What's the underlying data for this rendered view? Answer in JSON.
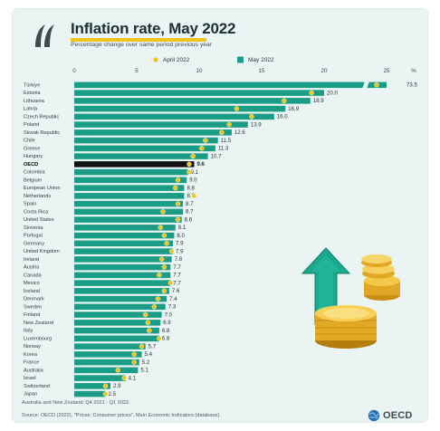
{
  "header": {
    "title": "Inflation rate, May 2022",
    "subtitle": "Percentage change over same period previous year"
  },
  "legend": {
    "april_label": "April 2022",
    "may_label": "May 2022"
  },
  "colors": {
    "may_bar": "#1a9c86",
    "oecd_bar": "#111111",
    "april_dot": "#f0c419",
    "background": "#eaf4f2"
  },
  "footnote": "Australia and New Zealand: Q4 2021 - Q1 2022.",
  "source": "Source: OECD (2022), \"Prices: Consumer prices\", Main Economic Indicators (database).",
  "logo_text": "OECD",
  "chart_data": {
    "type": "bar",
    "orientation": "horizontal",
    "x_ticks": [
      "0",
      "5",
      "10",
      "15",
      "20",
      "25"
    ],
    "x_unit": "%",
    "xlim": [
      0,
      25
    ],
    "grid": false,
    "legend_position": "top",
    "series": [
      {
        "name": "May 2022",
        "kind": "bar"
      },
      {
        "name": "April 2022",
        "kind": "dot"
      }
    ],
    "rows": [
      {
        "label": "Türkiye",
        "may": 73.5,
        "may_label": "73.5",
        "april": 70.0,
        "broken": true
      },
      {
        "label": "Estonia",
        "may": 20.0,
        "may_label": "20.0",
        "april": 19.0
      },
      {
        "label": "Lithuania",
        "may": 18.9,
        "may_label": "18.9",
        "april": 16.8
      },
      {
        "label": "Latvia",
        "may": 16.9,
        "may_label": "16.9",
        "april": 13.0
      },
      {
        "label": "Czech Republic",
        "may": 16.0,
        "may_label": "16.0",
        "april": 14.2
      },
      {
        "label": "Poland",
        "may": 13.9,
        "may_label": "13.9",
        "april": 12.4
      },
      {
        "label": "Slovak Republic",
        "may": 12.6,
        "may_label": "12.6",
        "april": 11.8
      },
      {
        "label": "Chile",
        "may": 11.5,
        "may_label": "11.5",
        "april": 10.5
      },
      {
        "label": "Greece",
        "may": 11.3,
        "may_label": "11.3",
        "april": 10.2
      },
      {
        "label": "Hungary",
        "may": 10.7,
        "may_label": "10.7",
        "april": 9.5
      },
      {
        "label": "OECD",
        "may": 9.6,
        "may_label": "9.6",
        "april": 9.2,
        "highlight": true
      },
      {
        "label": "Colombia",
        "may": 9.1,
        "may_label": "9.1",
        "april": 9.2
      },
      {
        "label": "Belgium",
        "may": 9.0,
        "may_label": "9.0",
        "april": 8.3
      },
      {
        "label": "European Union",
        "may": 8.8,
        "may_label": "8.8",
        "april": 8.1
      },
      {
        "label": "Netherlands",
        "may": 8.8,
        "may_label": "8.8",
        "april": 9.6
      },
      {
        "label": "Spain",
        "may": 8.7,
        "may_label": "8.7",
        "april": 8.3
      },
      {
        "label": "Costa Rica",
        "may": 8.7,
        "may_label": "8.7",
        "april": 7.1
      },
      {
        "label": "United States",
        "may": 8.6,
        "may_label": "8.6",
        "april": 8.3
      },
      {
        "label": "Slovenia",
        "may": 8.1,
        "may_label": "8.1",
        "april": 6.9
      },
      {
        "label": "Portugal",
        "may": 8.0,
        "may_label": "8.0",
        "april": 7.2
      },
      {
        "label": "Germany",
        "may": 7.9,
        "may_label": "7.9",
        "april": 7.4
      },
      {
        "label": "United Kingdom",
        "may": 7.9,
        "may_label": "7.9",
        "april": 7.8
      },
      {
        "label": "Ireland",
        "may": 7.8,
        "may_label": "7.8",
        "april": 7.0
      },
      {
        "label": "Austria",
        "may": 7.7,
        "may_label": "7.7",
        "april": 7.2
      },
      {
        "label": "Canada",
        "may": 7.7,
        "may_label": "7.7",
        "april": 6.8
      },
      {
        "label": "Mexico",
        "may": 7.7,
        "may_label": "7.7",
        "april": 7.7
      },
      {
        "label": "Iceland",
        "may": 7.6,
        "may_label": "7.6",
        "april": 7.2
      },
      {
        "label": "Denmark",
        "may": 7.4,
        "may_label": "7.4",
        "april": 6.7
      },
      {
        "label": "Sweden",
        "may": 7.3,
        "may_label": "7.3",
        "april": 6.4
      },
      {
        "label": "Finland",
        "may": 7.0,
        "may_label": "7.0",
        "april": 5.7
      },
      {
        "label": "New Zealand",
        "may": 6.9,
        "may_label": "6.9",
        "april": 5.9
      },
      {
        "label": "Italy",
        "may": 6.8,
        "may_label": "6.8",
        "april": 6.0
      },
      {
        "label": "Luxembourg",
        "may": 6.8,
        "may_label": "6.8",
        "april": 6.8
      },
      {
        "label": "Norway",
        "may": 5.7,
        "may_label": "5.7",
        "april": 5.4
      },
      {
        "label": "Korea",
        "may": 5.4,
        "may_label": "5.4",
        "april": 4.8
      },
      {
        "label": "France",
        "may": 5.2,
        "may_label": "5.2",
        "april": 4.8
      },
      {
        "label": "Australia",
        "may": 5.1,
        "may_label": "5.1",
        "april": 3.5
      },
      {
        "label": "Israel",
        "may": 4.1,
        "may_label": "4.1",
        "april": 4.0
      },
      {
        "label": "Switzerland",
        "may": 2.9,
        "may_label": "2.9",
        "april": 2.5
      },
      {
        "label": "Japan",
        "may": 2.5,
        "may_label": "2.5",
        "april": 2.5
      }
    ]
  }
}
